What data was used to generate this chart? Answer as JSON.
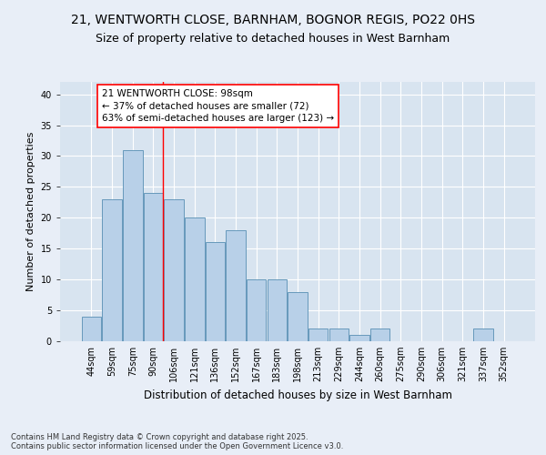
{
  "title1": "21, WENTWORTH CLOSE, BARNHAM, BOGNOR REGIS, PO22 0HS",
  "title2": "Size of property relative to detached houses in West Barnham",
  "xlabel": "Distribution of detached houses by size in West Barnham",
  "ylabel": "Number of detached properties",
  "categories": [
    "44sqm",
    "59sqm",
    "75sqm",
    "90sqm",
    "106sqm",
    "121sqm",
    "136sqm",
    "152sqm",
    "167sqm",
    "183sqm",
    "198sqm",
    "213sqm",
    "229sqm",
    "244sqm",
    "260sqm",
    "275sqm",
    "290sqm",
    "306sqm",
    "321sqm",
    "337sqm",
    "352sqm"
  ],
  "values": [
    4,
    23,
    31,
    24,
    23,
    20,
    16,
    18,
    10,
    10,
    8,
    2,
    2,
    1,
    2,
    0,
    0,
    0,
    0,
    2,
    0
  ],
  "bar_color": "#b8d0e8",
  "bar_edge_color": "#6699bb",
  "red_line_index": 3,
  "annotation_text": "21 WENTWORTH CLOSE: 98sqm\n← 37% of detached houses are smaller (72)\n63% of semi-detached houses are larger (123) →",
  "annotation_box_color": "white",
  "annotation_box_edge": "red",
  "ylim": [
    0,
    42
  ],
  "yticks": [
    0,
    5,
    10,
    15,
    20,
    25,
    30,
    35,
    40
  ],
  "background_color": "#e8eef7",
  "plot_background": "#d8e4f0",
  "footer": "Contains HM Land Registry data © Crown copyright and database right 2025.\nContains public sector information licensed under the Open Government Licence v3.0.",
  "title_fontsize": 10,
  "subtitle_fontsize": 9,
  "ylabel_fontsize": 8,
  "xlabel_fontsize": 8.5,
  "tick_fontsize": 7,
  "annotation_fontsize": 7.5,
  "footer_fontsize": 6
}
